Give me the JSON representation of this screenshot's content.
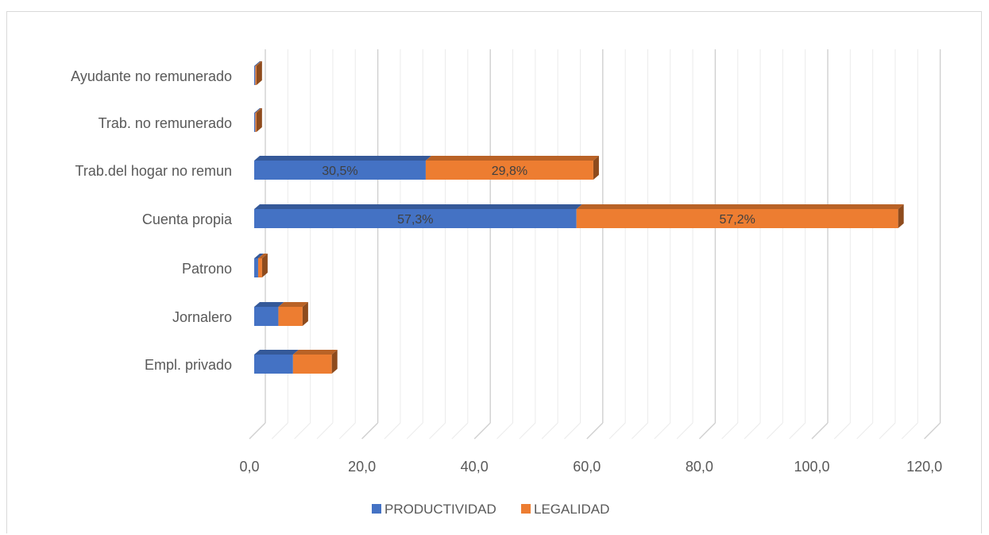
{
  "chart_data": {
    "type": "bar",
    "orientation": "horizontal",
    "stacked": true,
    "three_d": true,
    "categories": [
      "Empl. privado",
      "Jornalero",
      "Patrono",
      "Cuenta propia",
      "Trab.del hogar no remun",
      "Trab. no remunerado",
      "Ayudante no remunerado"
    ],
    "series": [
      {
        "name": "PRODUCTIVIDAD",
        "color": "#4472c4",
        "values": [
          6.9,
          4.3,
          0.7,
          57.3,
          30.5,
          0.2,
          0.2
        ],
        "data_labels": [
          "",
          "",
          "",
          "57,3%",
          "30,5%",
          "",
          ""
        ]
      },
      {
        "name": "LEGALIDAD",
        "color": "#ed7d31",
        "values": [
          6.9,
          4.3,
          0.7,
          57.2,
          29.8,
          0.2,
          0.2
        ],
        "data_labels": [
          "",
          "",
          "",
          "57,2%",
          "29,8%",
          "",
          ""
        ]
      }
    ],
    "x_ticks": [
      "0,0",
      "20,0",
      "40,0",
      "60,0",
      "80,0",
      "100,0",
      "120,0"
    ],
    "xlim": [
      0,
      120
    ],
    "grid": true,
    "legend_position": "bottom",
    "title": "",
    "xlabel": "",
    "ylabel": ""
  }
}
